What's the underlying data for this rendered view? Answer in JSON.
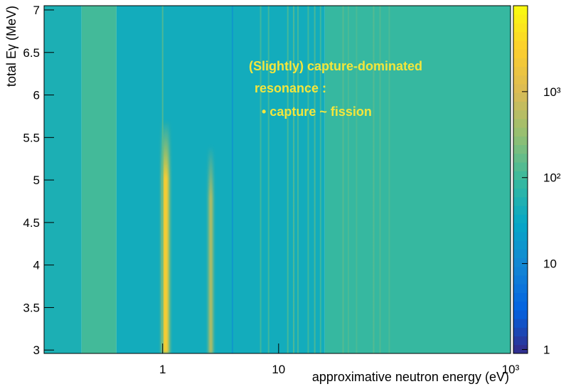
{
  "chart_data": {
    "type": "heatmap",
    "x_label": "approximative neutron energy (eV)",
    "y_label": "total Eγ (MeV)",
    "xlim": [
      0.095,
      1000
    ],
    "ylim": [
      2.96,
      7.05
    ],
    "zlim": [
      0.9,
      10000
    ],
    "x_log": true,
    "z_log": true,
    "xticks": [
      1,
      10,
      {
        "value": 1000,
        "label": "10³"
      }
    ],
    "yticks": [
      3,
      3.5,
      4,
      4.5,
      5,
      5.5,
      6,
      6.5,
      7
    ],
    "zticks": [
      1,
      10,
      {
        "value": 100,
        "label": "10²"
      },
      {
        "value": 1000,
        "label": "10³"
      }
    ],
    "colormap": [
      "#352a87",
      "#0363e1",
      "#1485d4",
      "#06a7c6",
      "#38b99e",
      "#92bf73",
      "#d9ba56",
      "#fcce2e",
      "#f9fb0e"
    ],
    "regions": [
      {
        "xrange": [
          0.095,
          0.2
        ],
        "value": 50
      },
      {
        "xrange": [
          0.2,
          0.4
        ],
        "value": 110
      },
      {
        "xrange": [
          0.4,
          25
        ],
        "value": 40
      },
      {
        "xrange": [
          25,
          1000
        ],
        "value": 90
      }
    ],
    "lines": [
      {
        "x": 1.06,
        "ymax": 5.7,
        "value": 3000
      },
      {
        "x": 1.0,
        "ymax": 7.05,
        "value": 150
      },
      {
        "x": 2.6,
        "ymax": 5.4,
        "value": 1500
      },
      {
        "x": 4.0,
        "ymax": 7.05,
        "value": 15
      },
      {
        "x": 7.0,
        "ymax": 7.05,
        "value": 120
      },
      {
        "x": 8.2,
        "ymax": 7.05,
        "value": 120
      },
      {
        "x": 12,
        "ymax": 7.05,
        "value": 130
      },
      {
        "x": 13.5,
        "ymax": 7.05,
        "value": 150
      },
      {
        "x": 14.7,
        "ymax": 7.05,
        "value": 130
      },
      {
        "x": 18,
        "ymax": 7.05,
        "value": 120
      },
      {
        "x": 20.5,
        "ymax": 7.05,
        "value": 140
      },
      {
        "x": 23,
        "ymax": 7.05,
        "value": 120
      },
      {
        "x": 36,
        "ymax": 7.05,
        "value": 150
      },
      {
        "x": 40,
        "ymax": 7.05,
        "value": 130
      },
      {
        "x": 47,
        "ymax": 7.05,
        "value": 130
      },
      {
        "x": 66,
        "ymax": 7.05,
        "value": 150
      },
      {
        "x": 75,
        "ymax": 7.05,
        "value": 140
      },
      {
        "x": 90,
        "ymax": 7.05,
        "value": 130
      }
    ],
    "annotation": {
      "color": "#f3e63c",
      "lines": [
        "(Slightly) capture-dominated",
        "resonance :",
        "•  capture ~ fission"
      ]
    }
  }
}
